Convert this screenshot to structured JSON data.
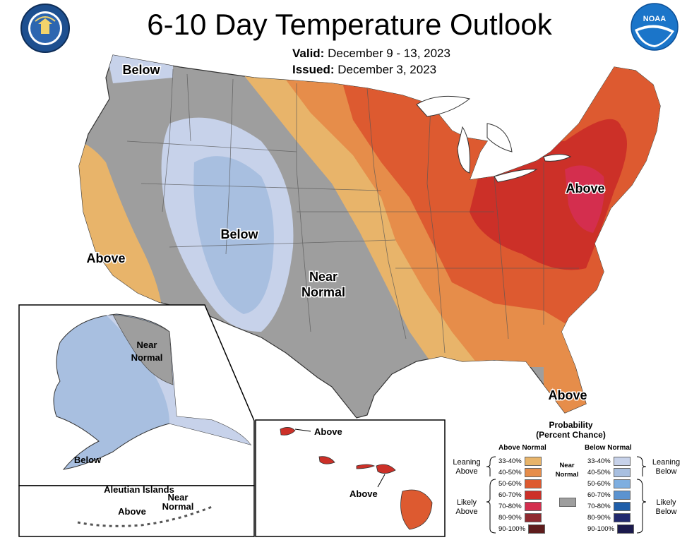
{
  "title": "6-10 Day Temperature Outlook",
  "valid_label": "Valid:",
  "valid_value": "December 9 - 13, 2023",
  "issued_label": "Issued:",
  "issued_value": "December 3, 2023",
  "map_labels": {
    "below_nw": "Below",
    "below_rockies": "Below",
    "above_ca": "Above",
    "near_normal": "Near Normal",
    "above_ne": "Above",
    "above_fl": "Above"
  },
  "alaska": {
    "near_normal": "Near Normal",
    "below": "Below"
  },
  "aleutian": {
    "title": "Aleutian Islands",
    "above": "Above",
    "near_normal": "Near Normal"
  },
  "hawaii": {
    "above_top": "Above",
    "above_bottom": "Above"
  },
  "legend": {
    "title": "Probability (Percent Chance)",
    "above_normal": "Above Normal",
    "below_normal": "Below Normal",
    "near_normal": "Near Normal",
    "leaning_above": "Leaning Above",
    "likely_above": "Likely Above",
    "leaning_below": "Leaning Below",
    "likely_below": "Likely Below",
    "ranges": [
      "33-40%",
      "40-50%",
      "50-60%",
      "60-70%",
      "70-80%",
      "80-90%",
      "90-100%"
    ],
    "above_colors": [
      "#e8b46a",
      "#e68d4a",
      "#dd5a30",
      "#cc3028",
      "#d42e4e",
      "#8f2a30",
      "#5e1c1c"
    ],
    "below_colors": [
      "#c7d2ea",
      "#a8bfe0",
      "#7eaee0",
      "#5b93d0",
      "#1f5ea9",
      "#222a6e",
      "#1b1a4c"
    ],
    "near_color": "#9e9e9e"
  },
  "icons": {
    "doc_seal": "department-of-commerce-seal-icon",
    "noaa_logo": "noaa-logo-icon"
  }
}
